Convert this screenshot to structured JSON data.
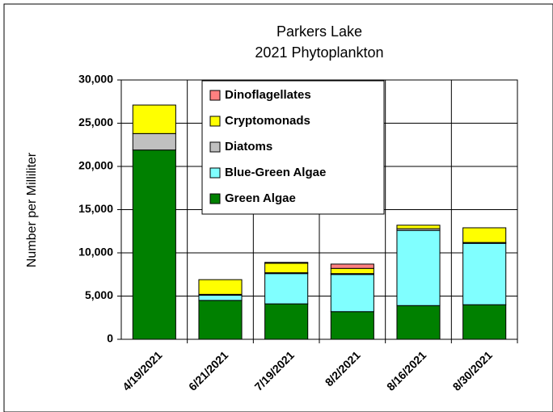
{
  "chart_data": {
    "type": "stacked_bar",
    "title": [
      "Parkers Lake",
      "2021 Phytoplankton"
    ],
    "y_label": "Number per Milliliter",
    "categories": [
      "4/19/2021",
      "6/21/2021",
      "7/19/2021",
      "8/2/2021",
      "8/16/2021",
      "8/30/2021"
    ],
    "series": [
      {
        "name": "Green Algae",
        "color": "#008000",
        "values": [
          21900,
          4500,
          4100,
          3200,
          3900,
          4000
        ]
      },
      {
        "name": "Blue-Green Algae",
        "color": "#80ffff",
        "values": [
          0,
          600,
          3500,
          4300,
          8700,
          7100
        ]
      },
      {
        "name": "Diatoms",
        "color": "#c0c0c0",
        "values": [
          1900,
          100,
          100,
          100,
          200,
          100
        ]
      },
      {
        "name": "Cryptomonads",
        "color": "#ffff00",
        "values": [
          3300,
          1700,
          1100,
          600,
          400,
          1700
        ]
      },
      {
        "name": "Dinoflagellates",
        "color": "#ff8080",
        "values": [
          0,
          0,
          100,
          500,
          0,
          0
        ]
      }
    ],
    "ylim": [
      0,
      30000
    ],
    "yticks": [
      0,
      {
        "value": 5000,
        "label": "5,000"
      },
      {
        "value": 10000,
        "label": "10,000"
      },
      {
        "value": 15000,
        "label": "15,000"
      },
      {
        "value": 20000,
        "label": "20,000"
      },
      {
        "value": 25000,
        "label": "25,000"
      },
      {
        "value": 30000,
        "label": "30,000"
      }
    ],
    "grid": true
  }
}
